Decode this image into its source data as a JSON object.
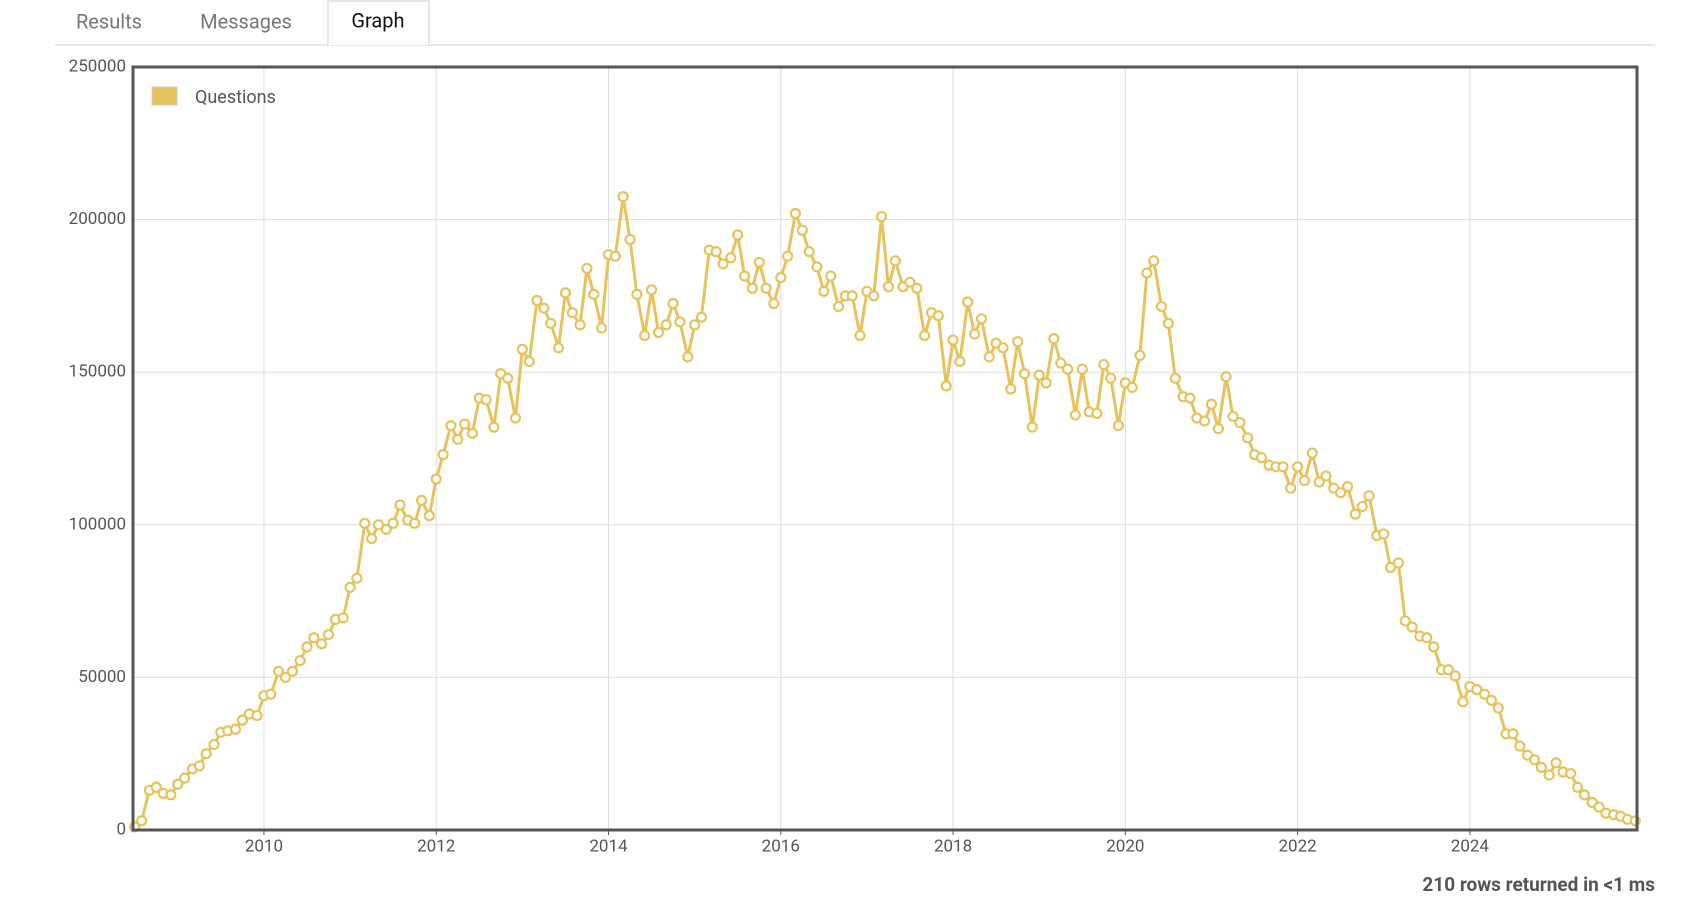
{
  "tabs": [
    "Results",
    "Messages",
    "Graph"
  ],
  "footer": "210 rows returned in <1 ms",
  "chart_data": {
    "type": "line",
    "x": [
      2008.5,
      2008.58,
      2008.67,
      2008.75,
      2008.83,
      2008.92,
      2009,
      2009.08,
      2009.17,
      2009.25,
      2009.33,
      2009.42,
      2009.5,
      2009.58,
      2009.67,
      2009.75,
      2009.83,
      2009.92,
      2010,
      2010.08,
      2010.17,
      2010.25,
      2010.33,
      2010.42,
      2010.5,
      2010.58,
      2010.67,
      2010.75,
      2010.83,
      2010.92,
      2011,
      2011.08,
      2011.17,
      2011.25,
      2011.33,
      2011.42,
      2011.5,
      2011.58,
      2011.67,
      2011.75,
      2011.83,
      2011.92,
      2012,
      2012.08,
      2012.17,
      2012.25,
      2012.33,
      2012.42,
      2012.5,
      2012.58,
      2012.67,
      2012.75,
      2012.83,
      2012.92,
      2013,
      2013.08,
      2013.17,
      2013.25,
      2013.33,
      2013.42,
      2013.5,
      2013.58,
      2013.67,
      2013.75,
      2013.83,
      2013.92,
      2014,
      2014.08,
      2014.17,
      2014.25,
      2014.33,
      2014.42,
      2014.5,
      2014.58,
      2014.67,
      2014.75,
      2014.83,
      2014.92,
      2015,
      2015.08,
      2015.17,
      2015.25,
      2015.33,
      2015.42,
      2015.5,
      2015.58,
      2015.67,
      2015.75,
      2015.83,
      2015.92,
      2016,
      2016.08,
      2016.17,
      2016.25,
      2016.33,
      2016.42,
      2016.5,
      2016.58,
      2016.67,
      2016.75,
      2016.83,
      2016.92,
      2017,
      2017.08,
      2017.17,
      2017.25,
      2017.33,
      2017.42,
      2017.5,
      2017.58,
      2017.67,
      2017.75,
      2017.83,
      2017.92,
      2018,
      2018.08,
      2018.17,
      2018.25,
      2018.33,
      2018.42,
      2018.5,
      2018.58,
      2018.67,
      2018.75,
      2018.83,
      2018.92,
      2019,
      2019.08,
      2019.17,
      2019.25,
      2019.33,
      2019.42,
      2019.5,
      2019.58,
      2019.67,
      2019.75,
      2019.83,
      2019.92,
      2020,
      2020.08,
      2020.17,
      2020.25,
      2020.33,
      2020.42,
      2020.5,
      2020.58,
      2020.67,
      2020.75,
      2020.83,
      2020.92,
      2021,
      2021.08,
      2021.17,
      2021.25,
      2021.33,
      2021.42,
      2021.5,
      2021.58,
      2021.67,
      2021.75,
      2021.83,
      2021.92,
      2022,
      2022.08,
      2022.17,
      2022.25,
      2022.33,
      2022.42,
      2022.5,
      2022.58,
      2022.67,
      2022.75,
      2022.83,
      2022.92,
      2023,
      2023.08,
      2023.17,
      2023.25,
      2023.33,
      2023.42,
      2023.5,
      2023.58,
      2023.67,
      2023.75,
      2023.83,
      2023.92,
      2024,
      2024.08,
      2024.17,
      2024.25,
      2024.33,
      2024.42,
      2024.5,
      2024.58,
      2024.67,
      2024.75,
      2024.83,
      2024.92,
      2025,
      2025.08,
      2025.17,
      2025.25,
      2025.33,
      2025.42,
      2025.5,
      2025.58,
      2025.67,
      2025.75,
      2025.83,
      2025.92
    ],
    "series": [
      {
        "name": "Questions",
        "color": "#e6c35c",
        "values": [
          1000,
          3000,
          13000,
          14000,
          12000,
          11500,
          15000,
          17000,
          20000,
          21000,
          25000,
          28000,
          32000,
          32500,
          33000,
          36000,
          38000,
          37500,
          44000,
          44500,
          52000,
          50000,
          52000,
          55500,
          60000,
          63000,
          61000,
          64000,
          69000,
          69500,
          79500,
          82500,
          100500,
          95500,
          100000,
          98500,
          100500,
          106500,
          101500,
          100500,
          108000,
          103000,
          115000,
          123000,
          132500,
          128000,
          133000,
          130000,
          141500,
          141000,
          132000,
          149500,
          148000,
          135000,
          157500,
          153500,
          173500,
          171000,
          166000,
          158000,
          176000,
          169500,
          165500,
          184000,
          175500,
          164500,
          188500,
          188000,
          207500,
          193500,
          175500,
          162000,
          177000,
          163000,
          165500,
          172500,
          166500,
          155000,
          165500,
          168000,
          190000,
          189500,
          185500,
          187500,
          195000,
          181500,
          177500,
          186000,
          177500,
          172500,
          181000,
          188000,
          202000,
          196500,
          189500,
          184500,
          176500,
          181500,
          171500,
          175000,
          175000,
          162000,
          176500,
          175000,
          201000,
          178000,
          186500,
          178000,
          179500,
          177500,
          162000,
          169500,
          168500,
          145500,
          160500,
          153500,
          173000,
          162500,
          167500,
          155000,
          159500,
          158000,
          144500,
          160000,
          149500,
          132000,
          149000,
          146500,
          161000,
          153000,
          151000,
          136000,
          151000,
          137000,
          136500,
          152500,
          148000,
          132500,
          146500,
          145000,
          155500,
          182500,
          186500,
          171500,
          166000,
          148000,
          142000,
          141500,
          135000,
          134000,
          139500,
          131500,
          148500,
          135500,
          133500,
          128500,
          123000,
          122000,
          119500,
          119000,
          119000,
          112000,
          119000,
          114500,
          123500,
          114000,
          116000,
          112000,
          110500,
          112500,
          103500,
          106000,
          109500,
          96500,
          97000,
          86000,
          87500,
          68500,
          66500,
          63500,
          63000,
          60000,
          52500,
          52500,
          50500,
          42000,
          47000,
          46000,
          44500,
          42500,
          40000,
          31500,
          31500,
          27500,
          24500,
          23000,
          20500,
          18000,
          22000,
          19000,
          18500,
          14000,
          11500,
          9000,
          7500,
          5500,
          5000,
          4500,
          3500,
          3000
        ]
      }
    ],
    "xlim": [
      2008.48,
      2025.94
    ],
    "xticks": [
      2010,
      2012,
      2014,
      2016,
      2018,
      2020,
      2022,
      2024
    ],
    "ylim": [
      0,
      250000
    ],
    "yticks": [
      0,
      50000,
      100000,
      150000,
      200000,
      250000
    ],
    "grid": true,
    "legend": "upper left"
  }
}
